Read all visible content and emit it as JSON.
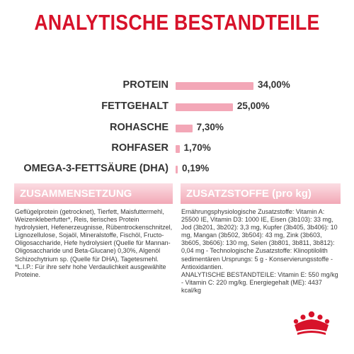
{
  "page": {
    "title": "ANALYTISCHE BESTANDTEILE"
  },
  "colors": {
    "title": "#d7122a",
    "bar": "#f3a7b7",
    "panel_header": "#f2a8b6",
    "logo": "#d7122a"
  },
  "nutrients": [
    {
      "label": "PROTEIN",
      "value": "34,00%",
      "percent": 34.0
    },
    {
      "label": "FETTGEHALT",
      "value": "25,00%",
      "percent": 25.0
    },
    {
      "label": "ROHASCHE",
      "value": "7,30%",
      "percent": 7.3
    },
    {
      "label": "ROHFASER",
      "value": "1,70%",
      "percent": 1.7
    },
    {
      "label": "OMEGA-3-FETTSÄURE (DHA)",
      "value": "0,19%",
      "percent": 0.19
    }
  ],
  "composition": {
    "heading": "ZUSAMMENSETZUNG",
    "text": "Geflügelprotein (getrocknet), Tierfett, Maisfuttermehl, Weizenkleberfutter*, Reis, tierisches Protein hydrolysiert, Hefenerzeugnisse, Rübentrockenschnitzel, Lignozellulose, Sojaöl, Mineralstoffe, Fischöl, Fructo-Oligosaccharide, Hefe hydrolysiert (Quelle für Mannan-Oligosaccharide und Beta-Glucane) 0,30%, Algenöl Schizochytrium sp. (Quelle für DHA), Tagetesmehl.",
    "footnote": "*L.I.P.: Für ihre sehr hohe Verdaulichkeit ausgewählte Proteine."
  },
  "additives": {
    "heading": "ZUSATZSTOFFE (pro kg)",
    "text": "Ernährungsphysiologische Zusatzstoffe: Vitamin A: 25500 IE, Vitamin D3: 1000 IE, Eisen (3b103): 33 mg, Jod (3b201, 3b202): 3,3 mg, Kupfer (3b405, 3b406): 10 mg, Mangan (3b502, 3b504): 43 mg, Zink (3b603, 3b605, 3b606): 130 mg, Selen (3b801, 3b811, 3b812): 0,04 mg - Technologische Zusatzstoffe: Klinoptilolith sedimentären Ursprungs: 5 g - Konservierungsstoffe - Antioxidantien.",
    "analytical": "ANALYTISCHE BESTANDTEILE: Vitamin E: 550 mg/kg - Vitamin C: 220 mg/kg. Energiegehalt (ME): 4437 kcal/kg"
  },
  "logo": {
    "icon": "crown-icon"
  }
}
